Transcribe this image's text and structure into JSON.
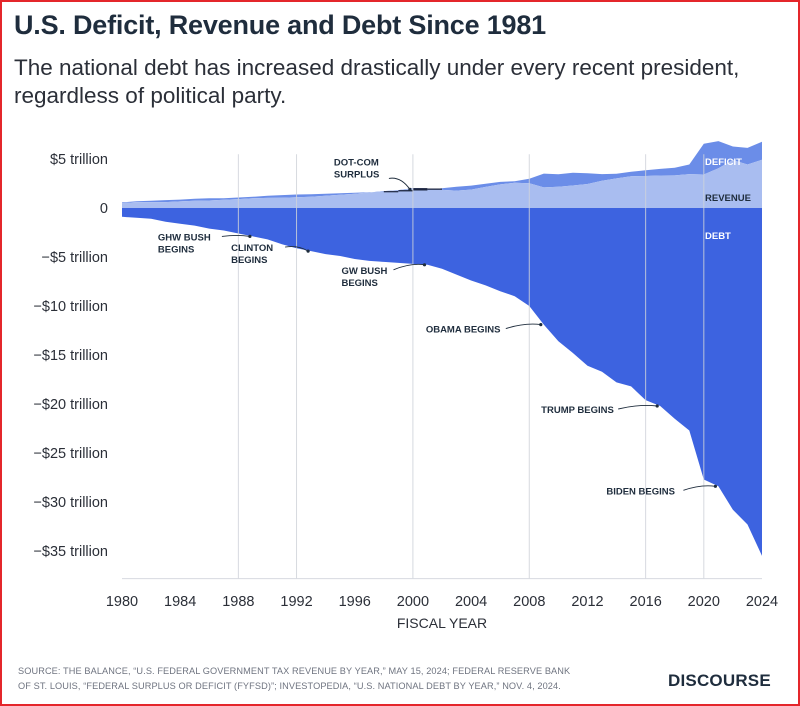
{
  "header": {
    "title": "U.S. Deficit, Revenue and Debt Since 1981",
    "subtitle": "The national debt has increased drastically under every recent president, regardless of political party."
  },
  "footer": {
    "source_line1": "SOURCE: THE BALANCE, “U.S. FEDERAL GOVERNMENT TAX REVENUE BY YEAR,” MAY 15, 2024; FEDERAL RESERVE BANK",
    "source_line2": "OF ST. LOUIS, “FEDERAL SURPLUS OR DEFICIT (FYFSD)”; INVESTOPEDIA, “U.S. NATIONAL DEBT BY YEAR,” NOV. 4, 2024.",
    "brand": "DISCOURSE"
  },
  "colors": {
    "revenue": "#a9bdf0",
    "deficit": "#6b8de8",
    "debt": "#3d63e0",
    "grid": "#cfd3da",
    "text": "#2b2f38"
  },
  "chart_data": {
    "type": "area",
    "title": "U.S. Deficit, Revenue and Debt Since 1981",
    "xlabel": "FISCAL YEAR",
    "ylabel": "",
    "xlim": [
      1980,
      2024
    ],
    "ylim": [
      -37,
      6
    ],
    "x_ticks": [
      1980,
      1984,
      1988,
      1992,
      1996,
      2000,
      2004,
      2008,
      2012,
      2016,
      2020,
      2024
    ],
    "y_ticks": [
      {
        "value": 5,
        "label": "$5 trillion"
      },
      {
        "value": 0,
        "label": "0"
      },
      {
        "value": -5,
        "label": "−$5 trillion"
      },
      {
        "value": -10,
        "label": "−$10 trillion"
      },
      {
        "value": -15,
        "label": "−$15 trillion"
      },
      {
        "value": -20,
        "label": "−$20 trillion"
      },
      {
        "value": -25,
        "label": "−$25 trillion"
      },
      {
        "value": -30,
        "label": "−$30 trillion"
      },
      {
        "value": -35,
        "label": "−$35 trillion"
      }
    ],
    "vertical_gridlines": [
      1988,
      1992,
      2000,
      2008,
      2016,
      2020
    ],
    "x": [
      1980,
      1981,
      1982,
      1983,
      1984,
      1985,
      1986,
      1987,
      1988,
      1989,
      1990,
      1991,
      1992,
      1993,
      1994,
      1995,
      1996,
      1997,
      1998,
      1999,
      2000,
      2001,
      2002,
      2003,
      2004,
      2005,
      2006,
      2007,
      2008,
      2009,
      2010,
      2011,
      2012,
      2013,
      2014,
      2015,
      2016,
      2017,
      2018,
      2019,
      2020,
      2021,
      2022,
      2023,
      2024
    ],
    "series": [
      {
        "name": "REVENUE",
        "values": [
          0.5,
          0.6,
          0.6,
          0.6,
          0.67,
          0.73,
          0.77,
          0.85,
          0.91,
          0.99,
          1.03,
          1.05,
          1.09,
          1.15,
          1.26,
          1.35,
          1.45,
          1.58,
          1.72,
          1.83,
          2.03,
          1.99,
          1.85,
          1.78,
          1.88,
          2.15,
          2.41,
          2.57,
          2.52,
          2.1,
          2.16,
          2.3,
          2.45,
          2.78,
          3.02,
          3.25,
          3.27,
          3.32,
          3.33,
          3.46,
          3.42,
          4.05,
          4.9,
          4.44,
          4.92
        ]
      },
      {
        "name": "DEFICIT",
        "values": [
          0.07,
          0.08,
          0.13,
          0.21,
          0.19,
          0.21,
          0.22,
          0.15,
          0.16,
          0.15,
          0.22,
          0.27,
          0.29,
          0.26,
          0.2,
          0.16,
          0.11,
          0.02,
          -0.07,
          -0.13,
          -0.24,
          -0.13,
          0.16,
          0.38,
          0.41,
          0.32,
          0.25,
          0.16,
          0.46,
          1.41,
          1.29,
          1.3,
          1.09,
          0.68,
          0.48,
          0.44,
          0.58,
          0.67,
          0.78,
          0.98,
          3.13,
          2.78,
          1.38,
          1.69,
          1.83
        ]
      },
      {
        "name": "DEBT",
        "values": [
          -0.9,
          -1.0,
          -1.1,
          -1.4,
          -1.6,
          -1.8,
          -2.1,
          -2.3,
          -2.6,
          -2.9,
          -3.2,
          -3.7,
          -4.1,
          -4.4,
          -4.7,
          -4.9,
          -5.2,
          -5.4,
          -5.5,
          -5.6,
          -5.7,
          -5.8,
          -6.2,
          -6.8,
          -7.4,
          -7.9,
          -8.5,
          -9.0,
          -10.0,
          -11.9,
          -13.6,
          -14.8,
          -16.1,
          -16.7,
          -17.8,
          -18.2,
          -19.6,
          -20.2,
          -21.5,
          -22.7,
          -27.7,
          -28.4,
          -30.8,
          -32.3,
          -35.5
        ]
      }
    ],
    "series_labels": {
      "deficit": "DEFICIT",
      "revenue": "REVENUE",
      "debt": "DEBT"
    },
    "annotations": [
      {
        "lines": [
          "DOT-COM",
          "SURPLUS"
        ],
        "x": 2000,
        "y": 1.9
      },
      {
        "lines": [
          "GHW BUSH",
          "BEGINS"
        ],
        "x": 1989,
        "y": -2.9
      },
      {
        "lines": [
          "CLINTON",
          "BEGINS"
        ],
        "x": 1993,
        "y": -4.4
      },
      {
        "lines": [
          "GW BUSH",
          "BEGINS"
        ],
        "x": 2001,
        "y": -5.8
      },
      {
        "lines": [
          "OBAMA BEGINS"
        ],
        "x": 2009,
        "y": -11.9
      },
      {
        "lines": [
          "TRUMP BEGINS"
        ],
        "x": 2017,
        "y": -20.2
      },
      {
        "lines": [
          "BIDEN BEGINS"
        ],
        "x": 2021,
        "y": -28.4
      }
    ]
  }
}
